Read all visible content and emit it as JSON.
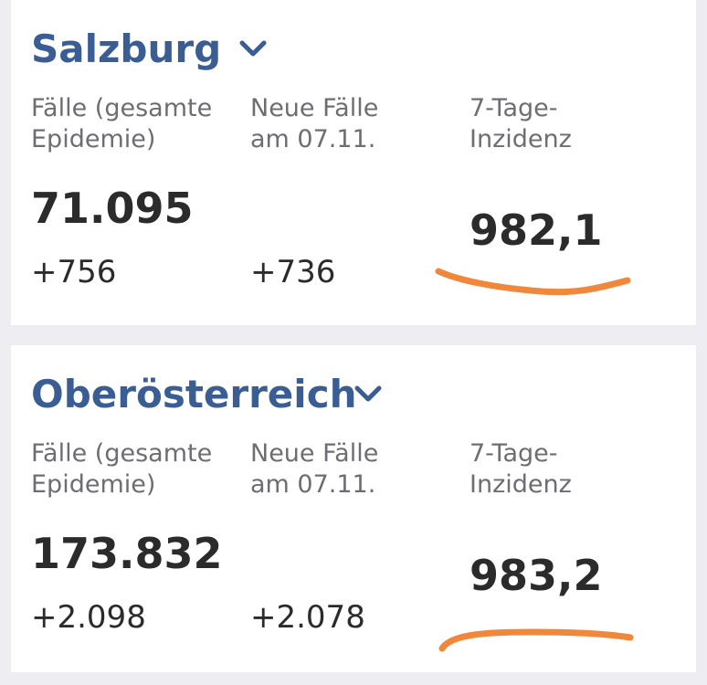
{
  "regions": [
    {
      "name": "Salzburg",
      "chevron_icon": "chevron-down-icon",
      "labels": {
        "cases_total": "Fälle (gesamte\nEpidemie)",
        "new_cases": "Neue Fälle\nam 07.11.",
        "incidence": "7-Tage-\nInzidenz"
      },
      "cases_total": "71.095",
      "cases_total_change": "+756",
      "new_cases": "+736",
      "incidence": "982,1"
    },
    {
      "name": "Oberösterreich",
      "chevron_icon": "chevron-down-icon",
      "labels": {
        "cases_total": "Fälle (gesamte\nEpidemie)",
        "new_cases": "Neue Fälle\nam 07.11.",
        "incidence": "7-Tage-\nInzidenz"
      },
      "cases_total": "173.832",
      "cases_total_change": "+2.098",
      "new_cases": "+2.078",
      "incidence": "983,2"
    }
  ],
  "colors": {
    "title": "#3a5d94",
    "label": "#6d6d75",
    "value": "#2b2b2b",
    "highlight_stroke": "#f0873a",
    "card": "#ffffff",
    "background": "#eeeef2"
  }
}
